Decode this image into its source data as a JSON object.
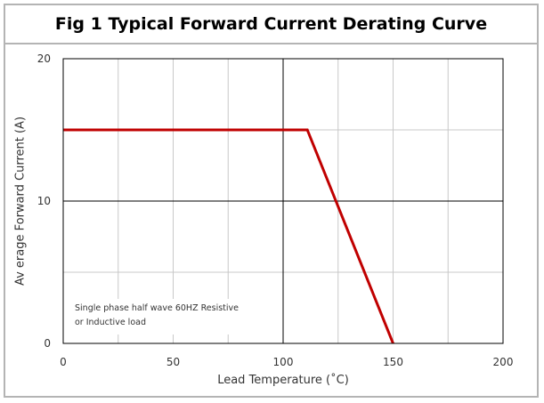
{
  "chart_data": {
    "type": "line",
    "title": "Fig 1 Typical Forward Current Derating Curve",
    "xlabel": "Lead Temperature (˚C)",
    "ylabel": "Av erage Forward Current (A)",
    "xlim": [
      0,
      200
    ],
    "ylim": [
      0,
      20
    ],
    "x_ticks": [
      {
        "value": 0,
        "label": "0"
      },
      {
        "value": 50,
        "label": "50"
      },
      {
        "value": 100,
        "label": "100"
      },
      {
        "value": 150,
        "label": "150"
      },
      {
        "value": 200,
        "label": "200"
      }
    ],
    "y_ticks": [
      {
        "value": 0,
        "label": "0"
      },
      {
        "value": 10,
        "label": "10"
      },
      {
        "value": 20,
        "label": "20"
      }
    ],
    "major_grid_x": [
      100
    ],
    "minor_grid_x": [
      25,
      50,
      75,
      125,
      150,
      175
    ],
    "major_grid_y": [
      10
    ],
    "minor_grid_y": [
      5,
      15
    ],
    "grid": true,
    "series": [
      {
        "color": "#c00000",
        "x": [
          0,
          111,
          150
        ],
        "y": [
          15,
          15,
          0
        ]
      }
    ],
    "annotation": {
      "lines": [
        "Single phase half wave 60HZ Resistive",
        "or Inductive load"
      ]
    }
  }
}
